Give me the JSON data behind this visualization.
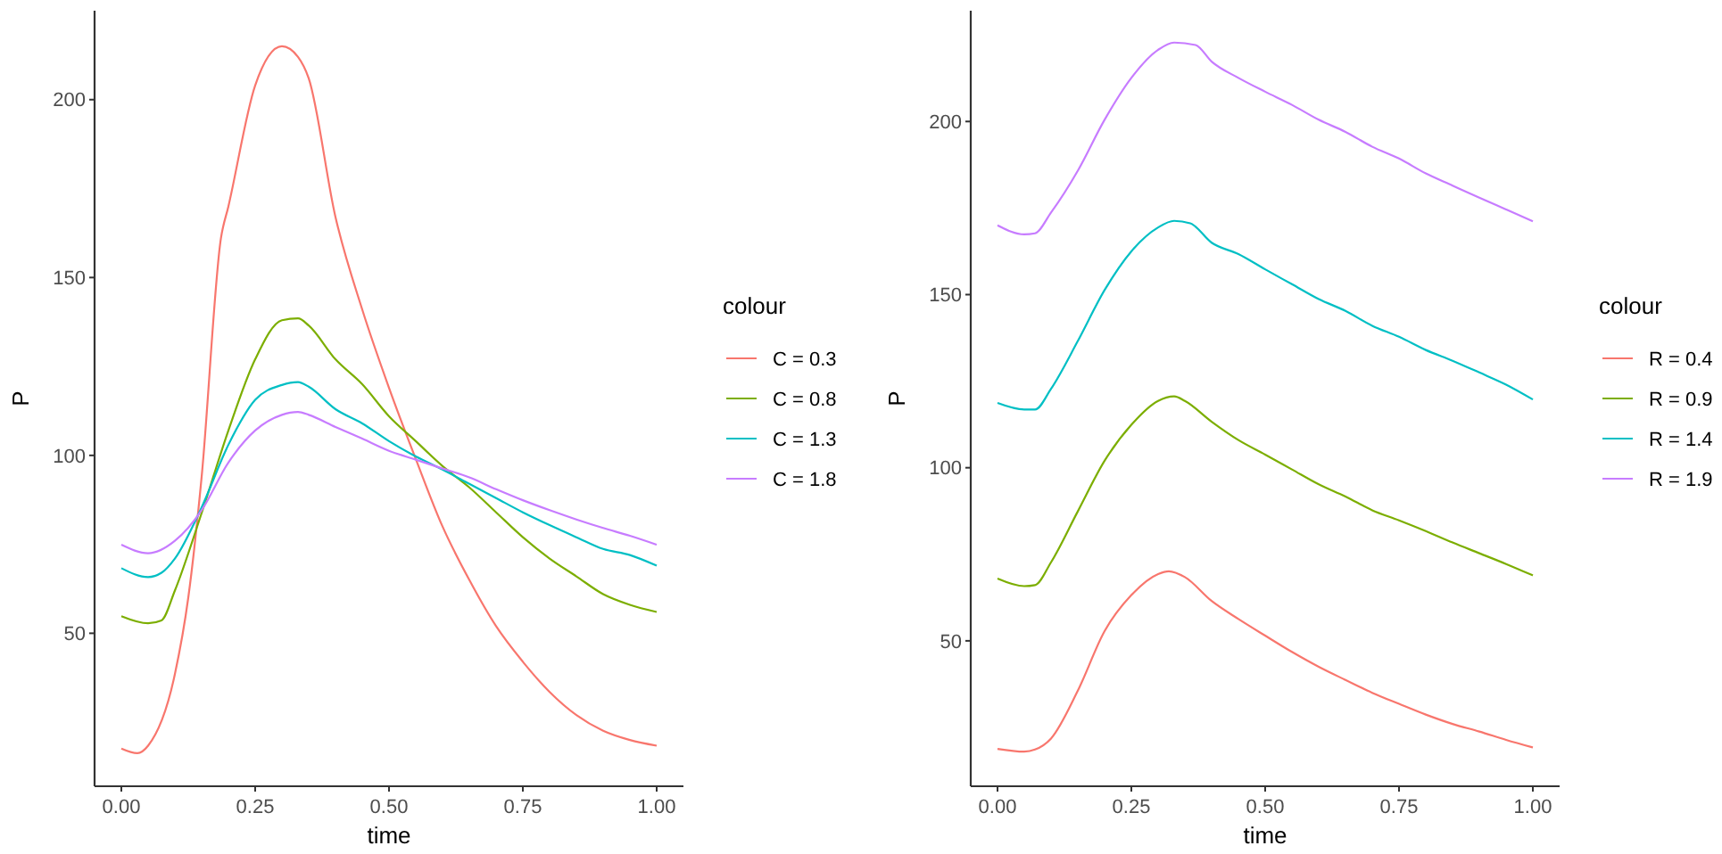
{
  "chart_data": [
    {
      "type": "line",
      "xlabel": "time",
      "ylabel": "P",
      "legend_title": "colour",
      "legend": "right",
      "xlim": [
        -0.05,
        1.05
      ],
      "ylim": [
        7,
        225
      ],
      "xticks": [
        {
          "value": 0,
          "label": "0.00"
        },
        {
          "value": 0.25,
          "label": "0.25"
        },
        {
          "value": 0.5,
          "label": "0.50"
        },
        {
          "value": 0.75,
          "label": "0.75"
        },
        {
          "value": 1,
          "label": "1.00"
        }
      ],
      "yticks": [
        50,
        100,
        150,
        200
      ],
      "series": [
        {
          "name": "C = 0.3",
          "color": "#F8766D",
          "x": [
            0,
            0.03,
            0.05,
            0.1,
            0.125,
            0.15,
            0.186,
            0.2,
            0.25,
            0.3,
            0.33,
            0.35,
            0.4,
            0.45,
            0.5,
            0.55,
            0.6,
            0.65,
            0.7,
            0.75,
            0.8,
            0.85,
            0.9,
            0.95,
            1
          ],
          "values": [
            17.6,
            16.3,
            18.4,
            38.5,
            60,
            94,
            161,
            170,
            204,
            215,
            212,
            206,
            167,
            141,
            119,
            99,
            80,
            65,
            52,
            42,
            33.5,
            27,
            22.6,
            20,
            18.4
          ]
        },
        {
          "name": "C = 0.8",
          "color": "#7CAE00",
          "x": [
            0,
            0.05,
            0.075,
            0.1,
            0.15,
            0.2,
            0.25,
            0.3,
            0.33,
            0.35,
            0.4,
            0.45,
            0.5,
            0.55,
            0.6,
            0.65,
            0.7,
            0.75,
            0.8,
            0.85,
            0.9,
            0.95,
            1
          ],
          "values": [
            54.8,
            52.8,
            53.6,
            62,
            83.8,
            107,
            127,
            138,
            138.5,
            136.5,
            127,
            120,
            111,
            104,
            97,
            91,
            84,
            77,
            71,
            66,
            61,
            58,
            56
          ]
        },
        {
          "name": "C = 1.3",
          "color": "#00BFC4",
          "x": [
            0,
            0.05,
            0.075,
            0.1,
            0.15,
            0.2,
            0.25,
            0.3,
            0.33,
            0.35,
            0.4,
            0.45,
            0.5,
            0.55,
            0.6,
            0.65,
            0.7,
            0.75,
            0.8,
            0.85,
            0.9,
            0.95,
            1
          ],
          "values": [
            68.3,
            65.8,
            67,
            71,
            85.4,
            103,
            115.6,
            119.8,
            120.6,
            119.3,
            113,
            109,
            104,
            99.7,
            96,
            92,
            88,
            84,
            80.4,
            77,
            73.7,
            72,
            69
          ]
        },
        {
          "name": "C = 1.8",
          "color": "#C77CFF",
          "x": [
            0,
            0.05,
            0.1,
            0.15,
            0.2,
            0.25,
            0.3,
            0.33,
            0.35,
            0.4,
            0.45,
            0.5,
            0.55,
            0.6,
            0.65,
            0.7,
            0.75,
            0.8,
            0.85,
            0.9,
            0.95,
            1
          ],
          "values": [
            74.9,
            72.5,
            76,
            84.6,
            98,
            107,
            111.4,
            112.2,
            111.4,
            108,
            104.7,
            101.3,
            98.8,
            96.3,
            93.8,
            90.5,
            87.4,
            84.6,
            82,
            79.6,
            77.4,
            74.9
          ]
        }
      ]
    },
    {
      "type": "line",
      "xlabel": "time",
      "ylabel": "P",
      "legend_title": "colour",
      "legend": "right",
      "xlim": [
        -0.05,
        1.05
      ],
      "ylim": [
        8,
        232
      ],
      "xticks": [
        {
          "value": 0,
          "label": "0.00"
        },
        {
          "value": 0.25,
          "label": "0.25"
        },
        {
          "value": 0.5,
          "label": "0.50"
        },
        {
          "value": 0.75,
          "label": "0.75"
        },
        {
          "value": 1,
          "label": "1.00"
        }
      ],
      "yticks": [
        50,
        100,
        150,
        200
      ],
      "series": [
        {
          "name": "R = 0.4",
          "color": "#F8766D",
          "x": [
            0,
            0.05,
            0.07,
            0.1,
            0.15,
            0.2,
            0.25,
            0.3,
            0.32,
            0.35,
            0.4,
            0.45,
            0.5,
            0.55,
            0.6,
            0.65,
            0.7,
            0.75,
            0.8,
            0.85,
            0.9,
            0.95,
            1
          ],
          "values": [
            18.8,
            18,
            18.6,
            21.8,
            35.6,
            52.8,
            63.2,
            69.3,
            70.1,
            68.4,
            61.5,
            56.3,
            51.5,
            46.8,
            42.5,
            38.7,
            35,
            31.8,
            28.7,
            26,
            23.8,
            21.4,
            19.2
          ]
        },
        {
          "name": "R = 0.9",
          "color": "#7CAE00",
          "x": [
            0,
            0.05,
            0.07,
            0.1,
            0.15,
            0.2,
            0.25,
            0.3,
            0.33,
            0.35,
            0.4,
            0.45,
            0.5,
            0.55,
            0.6,
            0.65,
            0.7,
            0.75,
            0.8,
            0.85,
            0.9,
            0.95,
            1
          ],
          "values": [
            68,
            65.8,
            66.1,
            72.7,
            87.4,
            102,
            112.4,
            119.3,
            120.6,
            119.3,
            113.3,
            108,
            103.8,
            99.5,
            95.2,
            91.7,
            87.7,
            84.8,
            81.7,
            78.4,
            75.3,
            72.2,
            68.9
          ]
        },
        {
          "name": "R = 1.4",
          "color": "#00BFC4",
          "x": [
            0,
            0.05,
            0.07,
            0.1,
            0.15,
            0.2,
            0.25,
            0.3,
            0.33,
            0.36,
            0.4,
            0.45,
            0.5,
            0.55,
            0.6,
            0.65,
            0.7,
            0.75,
            0.8,
            0.85,
            0.9,
            0.95,
            1
          ],
          "values": [
            118.7,
            116.8,
            116.8,
            122.8,
            136.6,
            151.3,
            162.5,
            169.4,
            171.3,
            170.6,
            165,
            161.7,
            157.3,
            153,
            148.7,
            145.3,
            141,
            137.8,
            134,
            130.9,
            127.5,
            124,
            119.7
          ]
        },
        {
          "name": "R = 1.9",
          "color": "#C77CFF",
          "x": [
            0,
            0.05,
            0.07,
            0.1,
            0.15,
            0.2,
            0.25,
            0.3,
            0.33,
            0.37,
            0.4,
            0.45,
            0.5,
            0.55,
            0.6,
            0.65,
            0.7,
            0.75,
            0.8,
            0.85,
            0.9,
            0.95,
            1
          ],
          "values": [
            170,
            167.4,
            167.7,
            173.7,
            185.8,
            200.5,
            212.6,
            220.7,
            222.8,
            222.1,
            217.3,
            212.6,
            208.6,
            204.8,
            200.5,
            197,
            192.7,
            189.3,
            185,
            181.5,
            178,
            174.6,
            171.2
          ]
        }
      ]
    }
  ]
}
